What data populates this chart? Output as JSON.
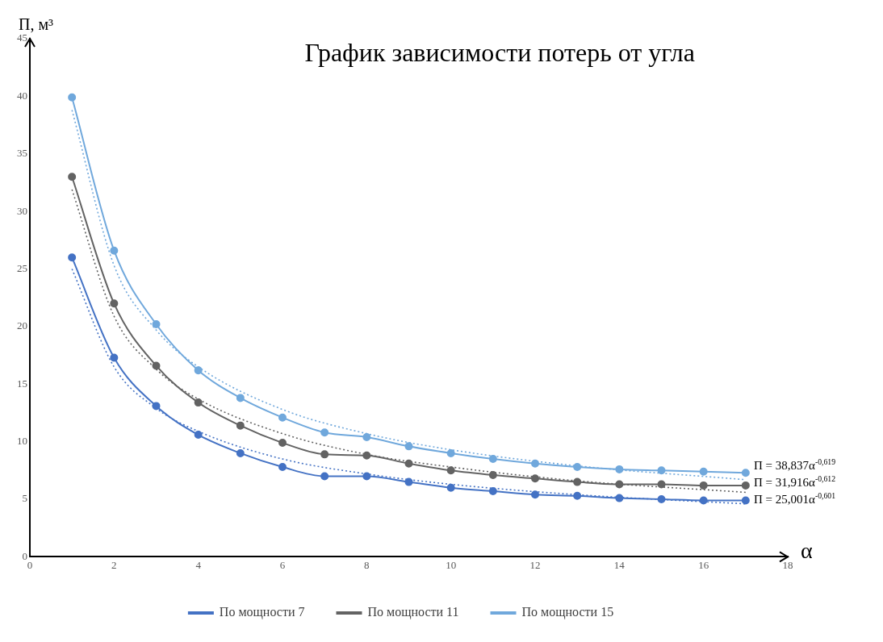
{
  "chart_data": {
    "type": "line",
    "title": "График зависимости потерь от угла",
    "xlabel": "α",
    "ylabel": "П, м³",
    "x": [
      1,
      2,
      3,
      4,
      5,
      6,
      7,
      8,
      9,
      10,
      11,
      12,
      13,
      14,
      15,
      16,
      17
    ],
    "series": [
      {
        "name": "По мощности 7",
        "color": "#4472c4",
        "marker": "circle",
        "values": [
          26.0,
          17.3,
          13.1,
          10.6,
          9.0,
          7.8,
          7.0,
          7.0,
          6.5,
          6.0,
          5.7,
          5.4,
          5.3,
          5.1,
          5.0,
          4.9,
          4.9
        ]
      },
      {
        "name": "По мощности 11",
        "color": "#636363",
        "marker": "circle",
        "values": [
          33.0,
          22.0,
          16.6,
          13.4,
          11.4,
          9.9,
          8.9,
          8.8,
          8.1,
          7.5,
          7.1,
          6.8,
          6.5,
          6.3,
          6.3,
          6.2,
          6.2
        ]
      },
      {
        "name": "По мощности 15",
        "color": "#70a8dc",
        "marker": "circle",
        "values": [
          39.9,
          26.6,
          20.2,
          16.2,
          13.8,
          12.1,
          10.8,
          10.4,
          9.6,
          9.0,
          8.5,
          8.1,
          7.8,
          7.6,
          7.5,
          7.4,
          7.3
        ]
      },
      {
        "type": "line",
        "color": "#4472c4",
        "marker": "none",
        "line_style": "dotted",
        "x": [
          1,
          2,
          3,
          4,
          6,
          8,
          10,
          13,
          17
        ],
        "values": [
          25.0,
          16.5,
          12.9,
          10.9,
          8.5,
          7.2,
          6.3,
          5.4,
          4.6
        ]
      },
      {
        "type": "line",
        "color": "#636363",
        "marker": "none",
        "line_style": "dotted",
        "x": [
          1,
          2,
          3,
          4,
          6,
          8,
          10,
          13,
          17
        ],
        "values": [
          31.9,
          20.9,
          16.3,
          13.7,
          10.7,
          8.9,
          7.8,
          6.6,
          5.6
        ]
      },
      {
        "type": "line",
        "color": "#70a8dc",
        "marker": "none",
        "line_style": "dotted",
        "x": [
          1,
          2,
          3,
          4,
          6,
          8,
          10,
          13,
          17
        ],
        "values": [
          38.8,
          25.3,
          19.7,
          16.5,
          12.8,
          10.7,
          9.3,
          7.9,
          6.7
        ]
      }
    ],
    "annotations": [
      "П = 38,837α$^{-0,619}$",
      "П = 31,916α$^{-0,612}$",
      "П = 25,001α$^{-0,601}$"
    ],
    "xlim": [
      0,
      18
    ],
    "xticks": [
      0,
      2,
      4,
      6,
      8,
      10,
      12,
      14,
      16,
      18
    ],
    "ylim": [
      0,
      45
    ],
    "yticks": [
      0,
      5,
      10,
      15,
      20,
      25,
      30,
      35,
      40,
      45
    ],
    "grid": false,
    "legend": "bottom"
  }
}
